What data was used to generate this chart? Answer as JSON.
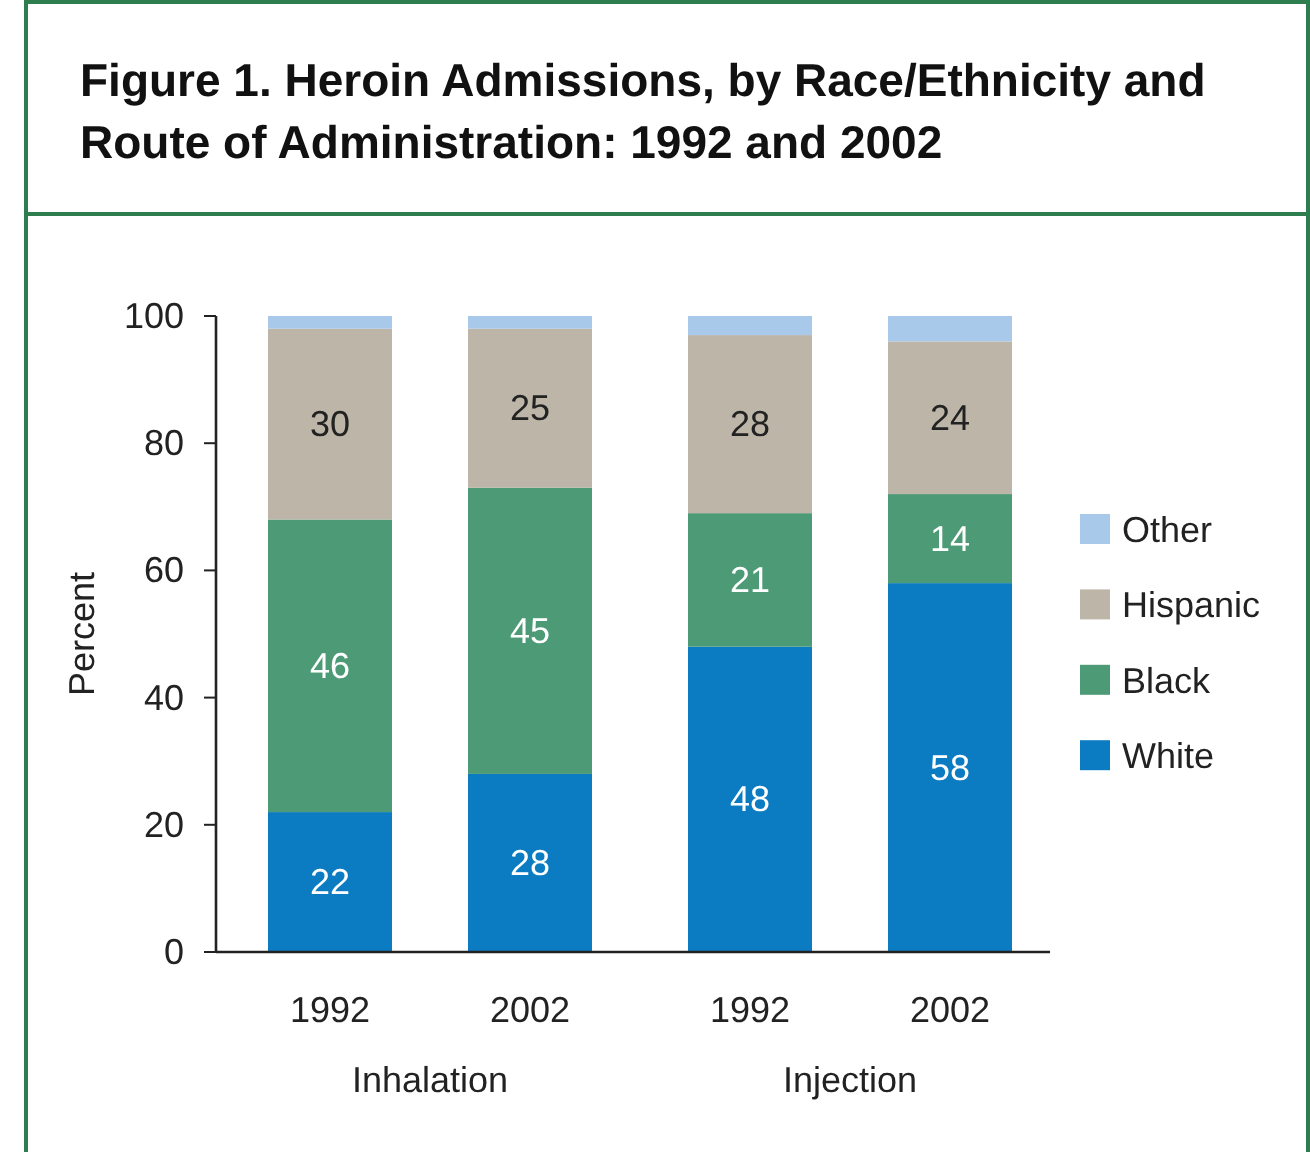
{
  "chart_data": {
    "type": "bar",
    "title": "Figure 1. Heroin Admissions, by Race/Ethnicity and Route of Administration: 1992 and 2002",
    "ylabel": "Percent",
    "categories": [
      "1992",
      "2002",
      "1992",
      "2002"
    ],
    "annotations": [
      "Inhalation",
      "Injection"
    ],
    "stacked": true,
    "ylim": [
      0,
      100
    ],
    "yticks": [
      0,
      20,
      40,
      60,
      80,
      100
    ],
    "legend": "right",
    "grid": false,
    "series": [
      {
        "name": "White",
        "color": "#0b7cc2",
        "values": [
          22,
          28,
          48,
          58
        ],
        "value_labels": [
          "22",
          "28",
          "48",
          "58"
        ]
      },
      {
        "name": "Black",
        "color": "#4c9a76",
        "values": [
          46,
          45,
          21,
          14
        ],
        "value_labels": [
          "46",
          "45",
          "21",
          "14"
        ]
      },
      {
        "name": "Hispanic",
        "color": "#bdb6a8",
        "values": [
          30,
          25,
          28,
          24
        ],
        "value_labels": [
          "30",
          "25",
          "28",
          "24"
        ]
      },
      {
        "name": "Other",
        "color": "#a9c9ea",
        "values": [
          2,
          2,
          3,
          4
        ],
        "value_labels": [
          null,
          null,
          null,
          null
        ]
      }
    ]
  }
}
